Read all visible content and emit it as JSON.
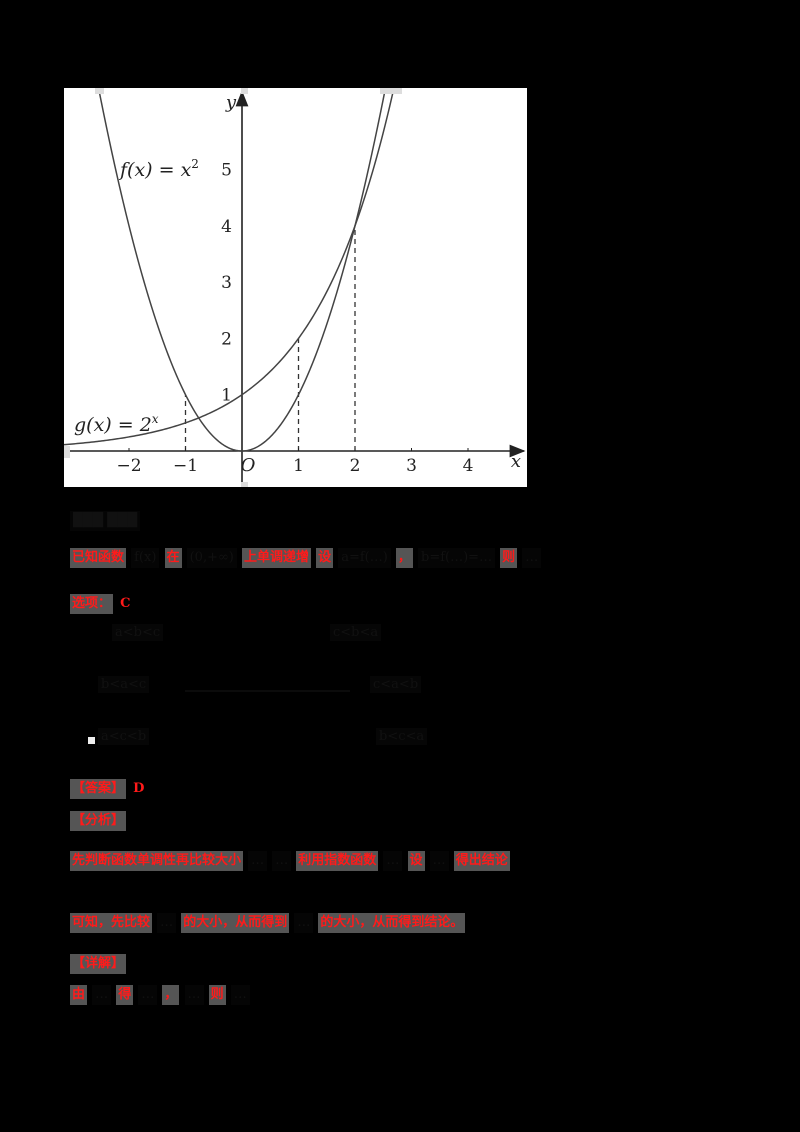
{
  "chart_data": {
    "type": "line",
    "title": "",
    "xlabel": "x",
    "ylabel": "y",
    "origin_label": "O",
    "xlim": [
      -3.1,
      5.0
    ],
    "ylim": [
      -0.6,
      6.4
    ],
    "x_ticks": [
      -2,
      -1,
      1,
      2,
      3,
      4
    ],
    "x_tick_labels": [
      "−2",
      "−1",
      "1",
      "2",
      "3",
      "4"
    ],
    "y_ticks": [
      1,
      2,
      3,
      4,
      5
    ],
    "y_tick_labels": [
      "1",
      "2",
      "3",
      "4",
      "5"
    ],
    "grid": false,
    "legend": "inline labels",
    "series": [
      {
        "name": "f(x) = x²",
        "label_main": "f(x) = x",
        "label_sup": "2",
        "type": "curve",
        "x": [
          -2.6,
          -2,
          -1.5,
          -1,
          -0.5,
          0,
          0.5,
          1,
          1.5,
          2,
          2.5
        ],
        "values": [
          6.76,
          4,
          2.25,
          1,
          0.25,
          0,
          0.25,
          1,
          2.25,
          4,
          6.25
        ]
      },
      {
        "name": "g(x) = 2^x",
        "label_main": "g(x) = 2",
        "label_sup": "x",
        "type": "curve",
        "x": [
          -3,
          -2,
          -1,
          0,
          1,
          2,
          2.6
        ],
        "values": [
          0.125,
          0.25,
          0.5,
          1,
          2,
          4,
          6.06
        ]
      }
    ],
    "annotations": [
      {
        "type": "dashed-vertical",
        "x": -1,
        "y_from": 0,
        "y_to": 1
      },
      {
        "type": "dashed-vertical",
        "x": 1,
        "y_from": 0,
        "y_to": 2
      },
      {
        "type": "dashed-vertical",
        "x": 2,
        "y_from": 0,
        "y_to": 4
      }
    ],
    "intersections": [
      [
        2,
        4
      ],
      [
        -0.77,
        0.59
      ]
    ]
  },
  "document": {
    "section_title": "███ ███",
    "question_line": {
      "prefix_highlight": "已知函数",
      "mid_highlight_1": "在",
      "mid_highlight_2": "上单调递增",
      "mid_highlight_3": "设",
      "mid_highlight_4": "，",
      "mid_highlight_5": "则",
      "dark_1": "f(x)",
      "dark_2": "(0,+∞)",
      "dark_3": "a=f(…)",
      "dark_4": "b=f(…)=…",
      "dark_5": "c=f(…)",
      "dark_6": "…"
    },
    "options_header_highlight": "选项：",
    "options_header_letter": "C",
    "options": [
      {
        "text": "a<b<c"
      },
      {
        "text": "c<b<a"
      },
      {
        "text": "b<a<c"
      },
      {
        "text": "c<a<b"
      },
      {
        "text": "a<c<b"
      },
      {
        "text": "b<c<a"
      }
    ],
    "answer_label": "【答案】",
    "answer_value": "D",
    "analysis_label": "【分析】",
    "analysis_line1_highlight": "先判断函数单调性再比较大小",
    "analysis_line1_dark_1": "…",
    "analysis_line1_dark_2": "…",
    "analysis_line1_highlight_2": "利用指数函数",
    "analysis_line1_dark_3": "…",
    "analysis_line1_highlight_3": "设",
    "analysis_line1_dark_4": "…",
    "analysis_line1_highlight_4": "得出结论",
    "analysis_line2_highlight_1": "可知，先比较",
    "analysis_line2_dark_1": "…",
    "analysis_line2_highlight_2": "的大小，从而得到",
    "analysis_line2_dark_2": "…",
    "analysis_line2_highlight_3": "的大小，从而得到结论。",
    "detail_label": "【详解】",
    "detail_line_highlight_1": "由",
    "detail_line_dark_1": "…",
    "detail_line_highlight_2": "得",
    "detail_line_dark_2": "…",
    "detail_line_highlight_3": "，",
    "detail_line_dark_3": "…",
    "detail_line_highlight_4": "则",
    "detail_line_dark_4": "…"
  }
}
